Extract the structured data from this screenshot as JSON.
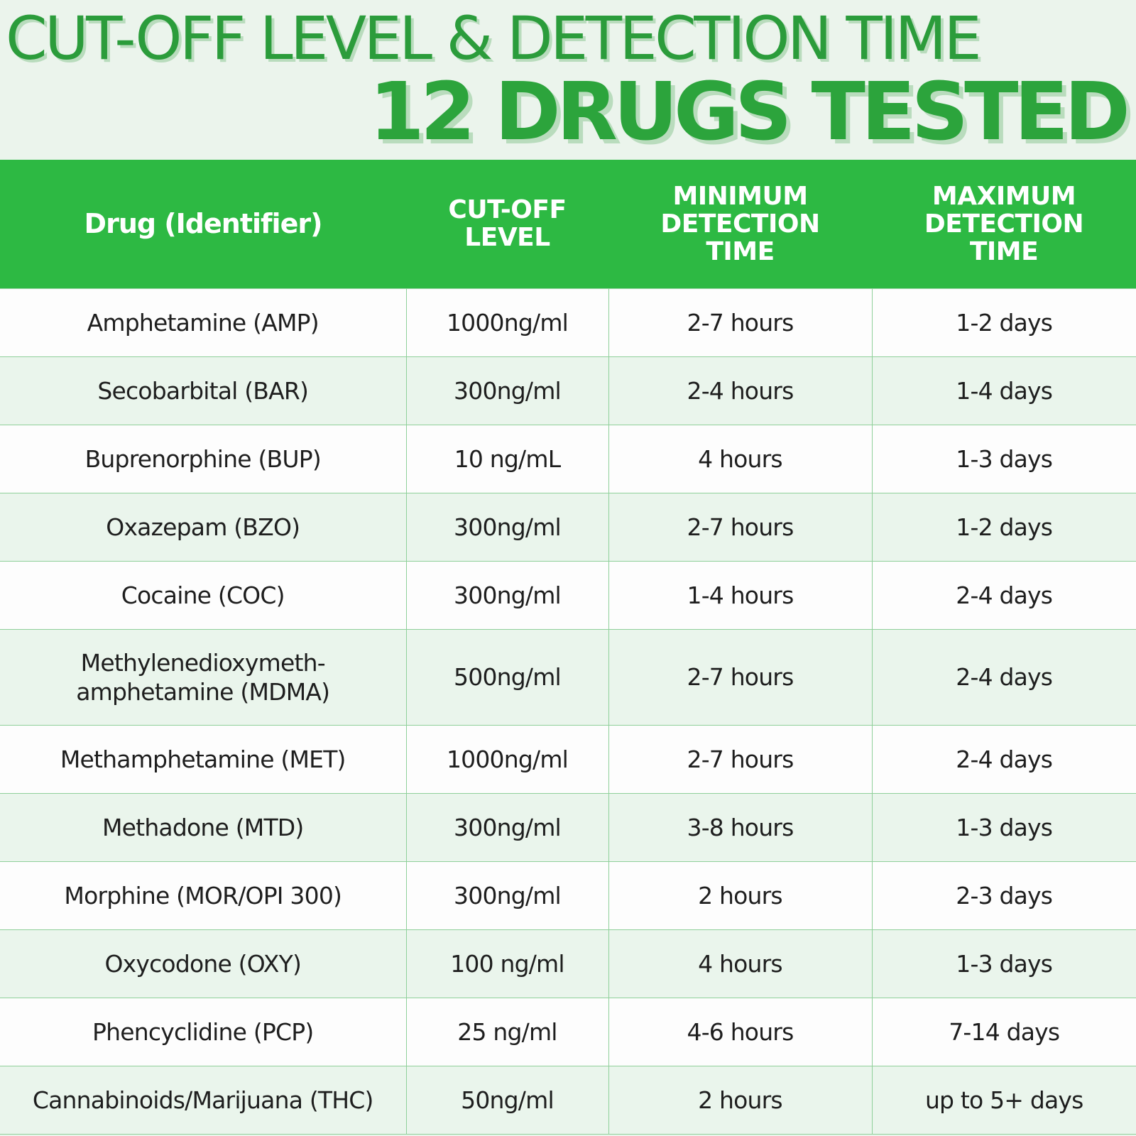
{
  "title": {
    "line1": "CUT-OFF LEVEL & DETECTION TIME",
    "line2": "12 DRUGS TESTED"
  },
  "colors": {
    "header_bg": "#2db943",
    "title_green": "#2b9c3b",
    "row_alt": "#eaf5ec",
    "grid_line": "#8fd09a"
  },
  "table": {
    "headers": {
      "drug": "Drug (Identifier)",
      "cutoff": "CUT-OFF LEVEL",
      "min": "MINIMUM DETECTION TIME",
      "max": "MAXIMUM DETECTION TIME"
    },
    "rows": [
      {
        "drug": "Amphetamine (AMP)",
        "cutoff": "1000ng/ml",
        "min": "2-7 hours",
        "max": "1-2 days"
      },
      {
        "drug": "Secobarbital (BAR)",
        "cutoff": "300ng/ml",
        "min": "2-4 hours",
        "max": "1-4 days"
      },
      {
        "drug": "Buprenorphine (BUP)",
        "cutoff": "10 ng/mL",
        "min": "4 hours",
        "max": "1-3 days"
      },
      {
        "drug": "Oxazepam (BZO)",
        "cutoff": "300ng/ml",
        "min": "2-7 hours",
        "max": "1-2 days"
      },
      {
        "drug": "Cocaine (COC)",
        "cutoff": "300ng/ml",
        "min": "1-4 hours",
        "max": "2-4 days"
      },
      {
        "drug": "Methylenedioxymeth-amphetamine (MDMA)",
        "cutoff": "500ng/ml",
        "min": "2-7 hours",
        "max": "2-4 days"
      },
      {
        "drug": "Methamphetamine (MET)",
        "cutoff": "1000ng/ml",
        "min": "2-7 hours",
        "max": "2-4 days"
      },
      {
        "drug": "Methadone (MTD)",
        "cutoff": "300ng/ml",
        "min": "3-8 hours",
        "max": "1-3 days"
      },
      {
        "drug": "Morphine (MOR/OPI 300)",
        "cutoff": "300ng/ml",
        "min": "2 hours",
        "max": "2-3 days"
      },
      {
        "drug": "Oxycodone (OXY)",
        "cutoff": "100 ng/ml",
        "min": "4 hours",
        "max": "1-3 days"
      },
      {
        "drug": "Phencyclidine (PCP)",
        "cutoff": "25 ng/ml",
        "min": "4-6 hours",
        "max": "7-14 days"
      },
      {
        "drug": "Cannabinoids/Marijuana (THC)",
        "cutoff": "50ng/ml",
        "min": "2 hours",
        "max": "up to 5+ days"
      }
    ]
  }
}
